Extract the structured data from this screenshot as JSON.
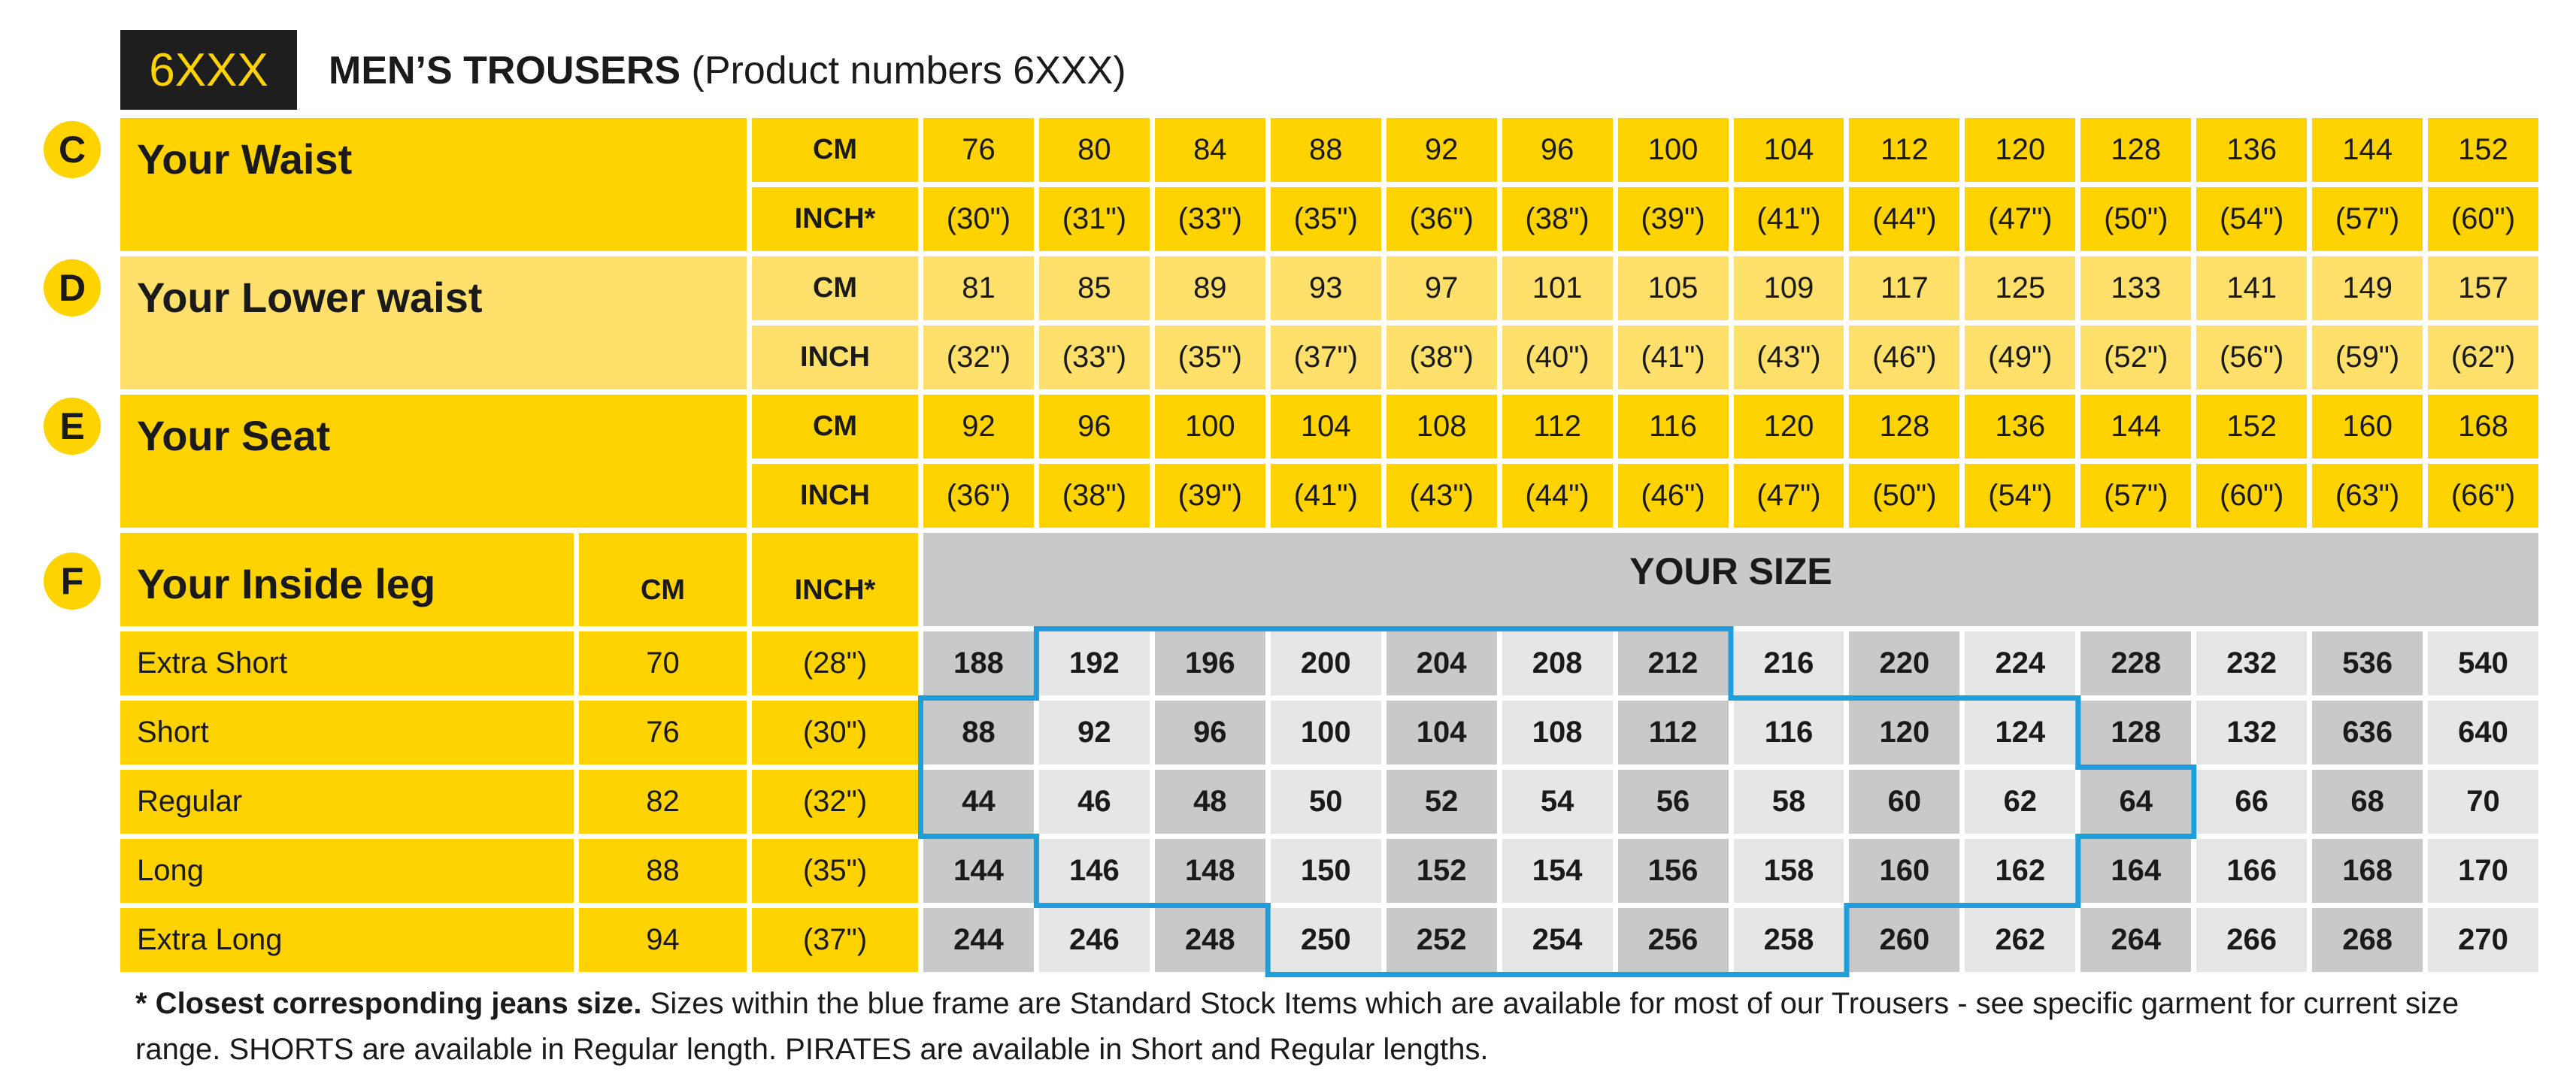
{
  "badge": "6XXX",
  "title": {
    "bold": "MEN’S TROUSERS",
    "rest": " (Product numbers 6XXX)"
  },
  "colors": {
    "yellow": "#FFD300",
    "light_yellow": "#FFE06A",
    "gray_dark": "#C9C9C9",
    "gray_light": "#E6E6E6",
    "frame_blue": "#1E9FDB",
    "badge_bg": "#1e1e1e"
  },
  "measures": [
    {
      "letter": "C",
      "label": "Your Waist",
      "light": false,
      "rows": [
        {
          "unit": "CM",
          "values": [
            "76",
            "80",
            "84",
            "88",
            "92",
            "96",
            "100",
            "104",
            "112",
            "120",
            "128",
            "136",
            "144",
            "152"
          ]
        },
        {
          "unit": "INCH*",
          "values": [
            "(30\")",
            "(31\")",
            "(33\")",
            "(35\")",
            "(36\")",
            "(38\")",
            "(39\")",
            "(41\")",
            "(44\")",
            "(47\")",
            "(50\")",
            "(54\")",
            "(57\")",
            "(60\")"
          ]
        }
      ]
    },
    {
      "letter": "D",
      "label": "Your Lower waist",
      "light": true,
      "rows": [
        {
          "unit": "CM",
          "values": [
            "81",
            "85",
            "89",
            "93",
            "97",
            "101",
            "105",
            "109",
            "117",
            "125",
            "133",
            "141",
            "149",
            "157"
          ]
        },
        {
          "unit": "INCH",
          "values": [
            "(32\")",
            "(33\")",
            "(35\")",
            "(37\")",
            "(38\")",
            "(40\")",
            "(41\")",
            "(43\")",
            "(46\")",
            "(49\")",
            "(52\")",
            "(56\")",
            "(59\")",
            "(62\")"
          ]
        }
      ]
    },
    {
      "letter": "E",
      "label": "Your Seat",
      "light": false,
      "rows": [
        {
          "unit": "CM",
          "values": [
            "92",
            "96",
            "100",
            "104",
            "108",
            "112",
            "116",
            "120",
            "128",
            "136",
            "144",
            "152",
            "160",
            "168"
          ]
        },
        {
          "unit": "INCH",
          "values": [
            "(36\")",
            "(38\")",
            "(39\")",
            "(41\")",
            "(43\")",
            "(44\")",
            "(46\")",
            "(47\")",
            "(50\")",
            "(54\")",
            "(57\")",
            "(60\")",
            "(63\")",
            "(66\")"
          ]
        }
      ]
    }
  ],
  "inside_leg": {
    "letter": "F",
    "label": "Your Inside leg",
    "cm_header": "CM",
    "inch_header": "INCH*",
    "size_header": "YOUR SIZE",
    "rows": [
      {
        "name": "Extra Short",
        "cm": "70",
        "inch": "(28\")",
        "sizes": [
          "188",
          "192",
          "196",
          "200",
          "204",
          "208",
          "212",
          "216",
          "220",
          "224",
          "228",
          "232",
          "536",
          "540"
        ],
        "standard_stock_cols": [
          1,
          6
        ]
      },
      {
        "name": "Short",
        "cm": "76",
        "inch": "(30\")",
        "sizes": [
          "88",
          "92",
          "96",
          "100",
          "104",
          "108",
          "112",
          "116",
          "120",
          "124",
          "128",
          "132",
          "636",
          "640"
        ],
        "standard_stock_cols": [
          0,
          9
        ]
      },
      {
        "name": "Regular",
        "cm": "82",
        "inch": "(32\")",
        "sizes": [
          "44",
          "46",
          "48",
          "50",
          "52",
          "54",
          "56",
          "58",
          "60",
          "62",
          "64",
          "66",
          "68",
          "70"
        ],
        "standard_stock_cols": [
          0,
          10
        ]
      },
      {
        "name": "Long",
        "cm": "88",
        "inch": "(35\")",
        "sizes": [
          "144",
          "146",
          "148",
          "150",
          "152",
          "154",
          "156",
          "158",
          "160",
          "162",
          "164",
          "166",
          "168",
          "170"
        ],
        "standard_stock_cols": [
          1,
          9
        ]
      },
      {
        "name": "Extra Long",
        "cm": "94",
        "inch": "(37\")",
        "sizes": [
          "244",
          "246",
          "248",
          "250",
          "252",
          "254",
          "256",
          "258",
          "260",
          "262",
          "264",
          "266",
          "268",
          "270"
        ],
        "standard_stock_cols": [
          3,
          7
        ]
      }
    ]
  },
  "footnote": {
    "bold": "* Closest corresponding jeans size.",
    "rest": " Sizes within the blue frame are Standard Stock Items which are available for most of our Trousers - see specific garment for current size range. SHORTS are available in Regular length. PIRATES are available in Short and Regular lengths."
  }
}
